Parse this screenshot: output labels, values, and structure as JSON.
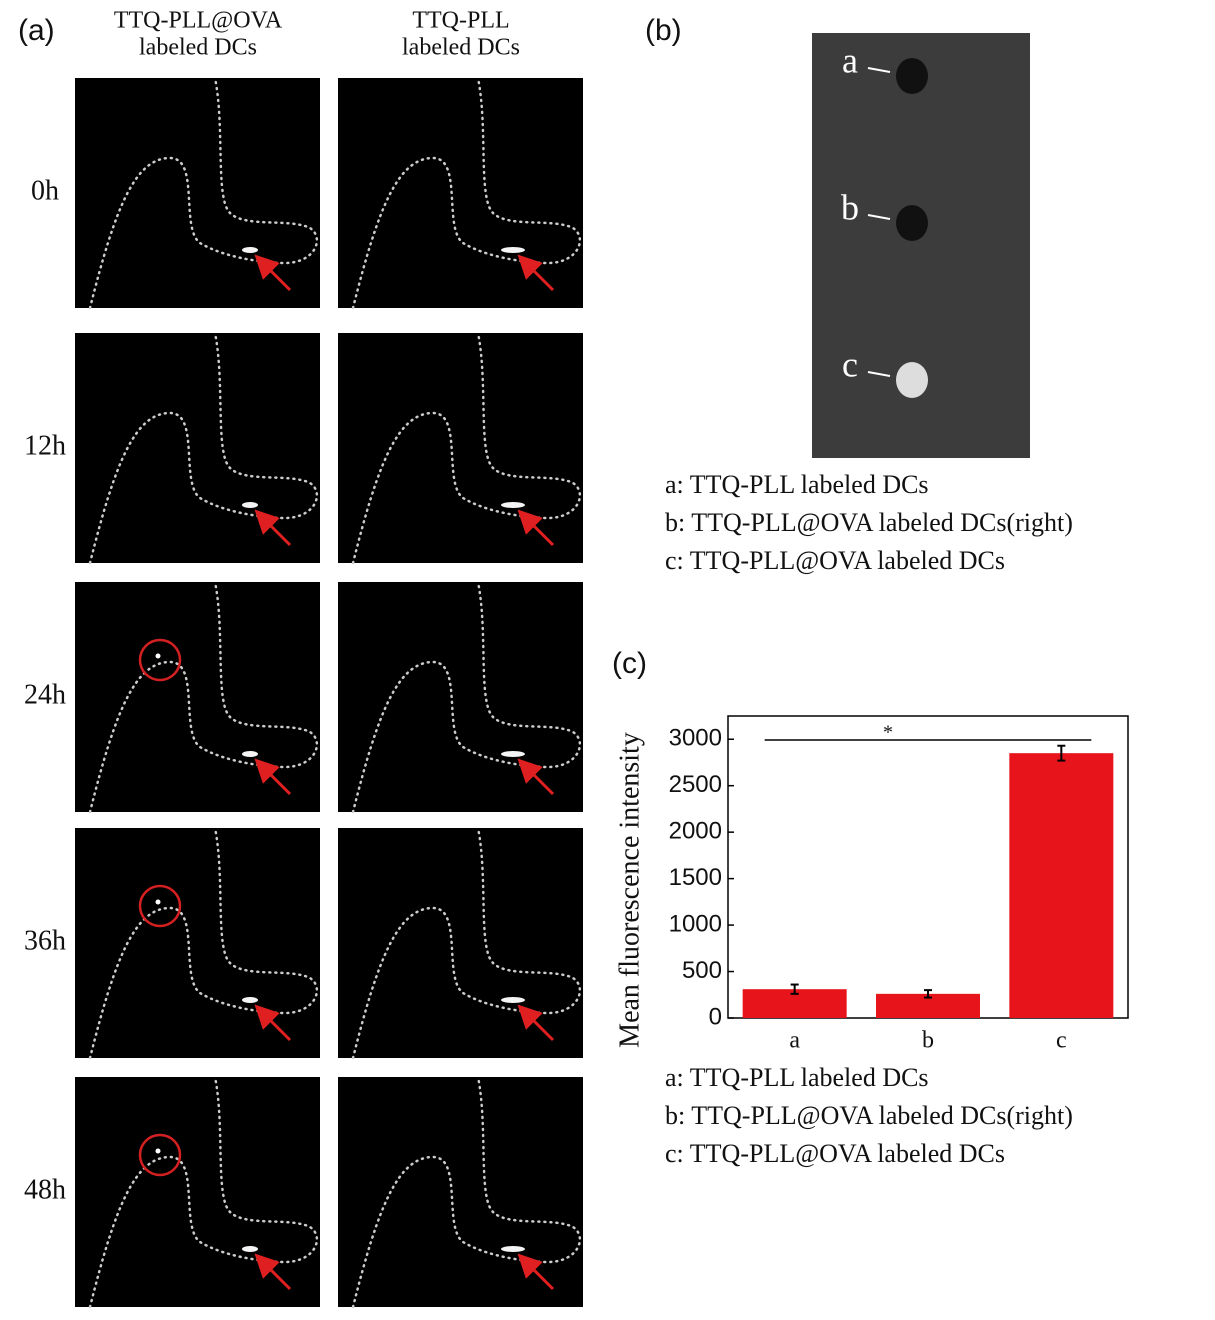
{
  "panel_a": {
    "label": "(a)",
    "columns": [
      [
        "TTQ-PLL@OVA",
        "labeled DCs"
      ],
      [
        "TTQ-PLL",
        "labeled DCs"
      ]
    ],
    "rows": [
      "0h",
      "12h",
      "24h",
      "36h",
      "48h"
    ]
  },
  "panel_b": {
    "label": "(b)",
    "spots": [
      "a",
      "b",
      "c"
    ],
    "legend": [
      "a: TTQ-PLL labeled DCs",
      "b: TTQ-PLL@OVA labeled DCs(right)",
      "c: TTQ-PLL@OVA labeled DCs"
    ]
  },
  "panel_c": {
    "label": "(c)",
    "legend": [
      "a: TTQ-PLL labeled DCs",
      "b: TTQ-PLL@OVA labeled DCs(right)",
      "c: TTQ-PLL@OVA labeled DCs"
    ]
  },
  "chart_data": {
    "type": "bar",
    "y_label": "Mean fluorescence intensity",
    "categories": [
      "a",
      "b",
      "c"
    ],
    "values": [
      310,
      260,
      2850
    ],
    "errors": [
      50,
      40,
      80
    ],
    "color": "#e8141c",
    "ylim": [
      0,
      3250
    ],
    "yticks": [
      0,
      500,
      1000,
      1500,
      2000,
      2500,
      3000
    ],
    "annotation": "*"
  }
}
